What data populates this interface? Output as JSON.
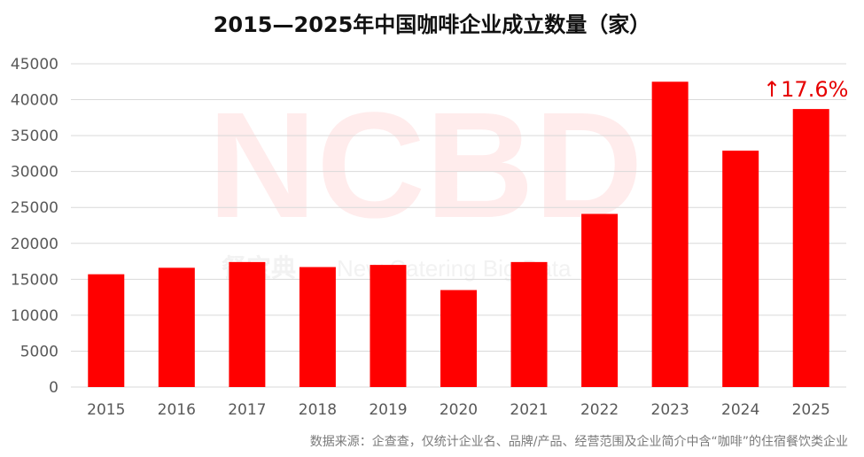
{
  "title": "2015—2025年中国咖啡企业成立数量（家）",
  "source_note": "数据来源：企查查，仅统计企业名、品牌/产品、经营范围及企业简介中含“咖啡”的住宿餐饮类企业",
  "watermark": {
    "logo": "NCBD",
    "subtitle_cn": "餐宝典",
    "subtitle_en": "New Catering Big Data"
  },
  "colors": {
    "bar": "#ff0000",
    "annotation": "#e60000",
    "grid": "#d9d9d9",
    "axis_text": "#595959"
  },
  "chart_data": {
    "type": "bar",
    "title": "2015—2025年中国咖啡企业成立数量（家）",
    "categories": [
      "2015",
      "2016",
      "2017",
      "2018",
      "2019",
      "2020",
      "2021",
      "2022",
      "2023",
      "2024",
      "2025"
    ],
    "values": [
      15700,
      16600,
      17400,
      16700,
      17000,
      13500,
      17400,
      24100,
      42500,
      32900,
      38700
    ],
    "xlabel": "",
    "ylabel": "",
    "ylim": [
      0,
      45000
    ],
    "yticks": [
      0,
      5000,
      10000,
      15000,
      20000,
      25000,
      30000,
      35000,
      40000,
      45000
    ],
    "grid": true,
    "legend": "none",
    "annotations": [
      {
        "category": "2025",
        "text": "↑17.6%"
      }
    ]
  }
}
